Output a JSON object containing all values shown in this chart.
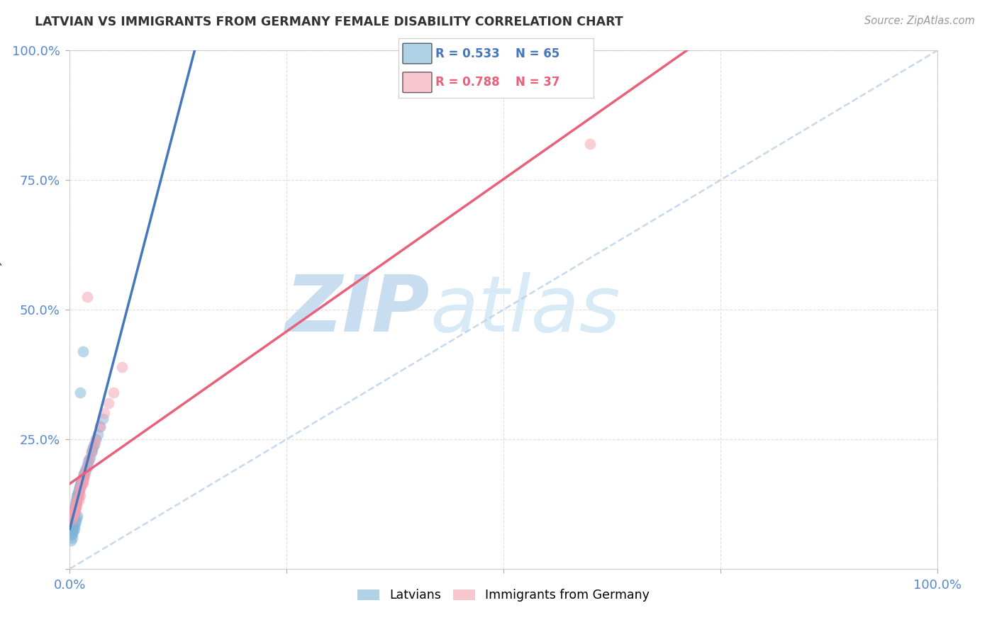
{
  "title": "LATVIAN VS IMMIGRANTS FROM GERMANY FEMALE DISABILITY CORRELATION CHART",
  "source": "Source: ZipAtlas.com",
  "ylabel": "Female Disability",
  "xlim": [
    0,
    1
  ],
  "ylim": [
    0,
    1
  ],
  "latvian_R": 0.533,
  "latvian_N": 65,
  "immigrant_R": 0.788,
  "immigrant_N": 37,
  "latvian_color": "#7EB3D8",
  "immigrant_color": "#F4A0B0",
  "latvian_line_color": "#4477BB",
  "immigrant_line_color": "#E8607A",
  "diag_color": "#B8D0E8",
  "background_color": "#FFFFFF",
  "grid_color": "#DDDDDD",
  "watermark_zip": "ZIP",
  "watermark_atlas": "atlas",
  "watermark_color": "#C8DEF0",
  "tick_color": "#5588CC",
  "title_color": "#333333",
  "latvian_x": [
    0.002,
    0.003,
    0.003,
    0.004,
    0.004,
    0.004,
    0.005,
    0.005,
    0.005,
    0.006,
    0.006,
    0.006,
    0.007,
    0.007,
    0.007,
    0.008,
    0.008,
    0.008,
    0.009,
    0.009,
    0.009,
    0.01,
    0.01,
    0.01,
    0.011,
    0.011,
    0.012,
    0.012,
    0.013,
    0.013,
    0.014,
    0.015,
    0.015,
    0.016,
    0.016,
    0.017,
    0.018,
    0.019,
    0.02,
    0.021,
    0.022,
    0.023,
    0.025,
    0.026,
    0.027,
    0.028,
    0.03,
    0.032,
    0.035,
    0.038,
    0.003,
    0.004,
    0.005,
    0.006,
    0.007,
    0.008,
    0.009,
    0.003,
    0.004,
    0.005,
    0.012,
    0.015,
    0.002,
    0.003,
    0.001
  ],
  "latvian_y": [
    0.08,
    0.085,
    0.09,
    0.095,
    0.1,
    0.105,
    0.108,
    0.112,
    0.115,
    0.118,
    0.12,
    0.122,
    0.125,
    0.128,
    0.13,
    0.132,
    0.135,
    0.138,
    0.14,
    0.143,
    0.145,
    0.148,
    0.15,
    0.153,
    0.155,
    0.158,
    0.16,
    0.163,
    0.165,
    0.168,
    0.17,
    0.175,
    0.178,
    0.18,
    0.183,
    0.185,
    0.19,
    0.195,
    0.2,
    0.205,
    0.21,
    0.215,
    0.225,
    0.23,
    0.235,
    0.24,
    0.25,
    0.26,
    0.275,
    0.29,
    0.075,
    0.078,
    0.082,
    0.088,
    0.092,
    0.098,
    0.102,
    0.068,
    0.072,
    0.076,
    0.34,
    0.42,
    0.065,
    0.06,
    0.055
  ],
  "immigrant_x": [
    0.003,
    0.004,
    0.005,
    0.006,
    0.007,
    0.008,
    0.009,
    0.01,
    0.011,
    0.012,
    0.013,
    0.014,
    0.015,
    0.016,
    0.017,
    0.018,
    0.02,
    0.022,
    0.025,
    0.028,
    0.03,
    0.035,
    0.04,
    0.045,
    0.05,
    0.06,
    0.003,
    0.004,
    0.005,
    0.006,
    0.007,
    0.008,
    0.01,
    0.012,
    0.015,
    0.6,
    0.02
  ],
  "immigrant_y": [
    0.1,
    0.11,
    0.115,
    0.12,
    0.125,
    0.13,
    0.135,
    0.14,
    0.15,
    0.155,
    0.16,
    0.165,
    0.17,
    0.175,
    0.18,
    0.185,
    0.195,
    0.21,
    0.225,
    0.24,
    0.25,
    0.275,
    0.3,
    0.32,
    0.34,
    0.39,
    0.095,
    0.105,
    0.108,
    0.112,
    0.118,
    0.122,
    0.132,
    0.142,
    0.165,
    0.82,
    0.525
  ],
  "latvian_line_x0": 0.0,
  "latvian_line_y0": 0.07,
  "latvian_line_x1": 1.0,
  "latvian_line_y1": 1.0,
  "immigrant_line_x0": 0.0,
  "immigrant_line_y0": 0.055,
  "immigrant_line_x1": 1.0,
  "immigrant_line_y1": 1.0
}
